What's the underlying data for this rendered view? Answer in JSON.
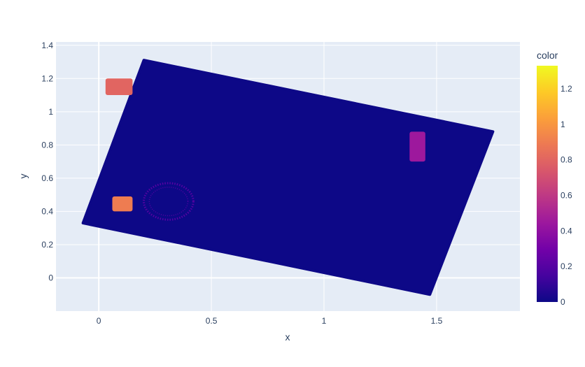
{
  "chart_data": {
    "type": "scatter",
    "title": "",
    "xlabel": "x",
    "ylabel": "y",
    "xlim": [
      -0.19,
      1.87
    ],
    "ylim": [
      -0.2,
      1.42
    ],
    "x_ticks": [
      0,
      0.5,
      1,
      1.5
    ],
    "x_tick_labels": [
      "0",
      "0.5",
      "1",
      "1.5"
    ],
    "y_ticks": [
      0,
      0.2,
      0.4,
      0.6,
      0.8,
      1,
      1.2,
      1.4
    ],
    "y_tick_labels": [
      "0",
      "0.2",
      "0.4",
      "0.6",
      "0.8",
      "1",
      "1.2",
      "1.4"
    ],
    "grid": true,
    "plot_background": "#e5ecf6",
    "colorbar": {
      "title": "color",
      "range": [
        0,
        1.33
      ],
      "ticks": [
        0,
        0.2,
        0.4,
        0.6,
        0.8,
        1,
        1.2
      ],
      "tick_labels": [
        "0",
        "0.2",
        "0.4",
        "0.6",
        "0.8",
        "1",
        "1.2"
      ],
      "colorscale": [
        "#0d0887",
        "#46039f",
        "#7201a8",
        "#9c179e",
        "#bd3786",
        "#d8576b",
        "#ed7953",
        "#fb9f3a",
        "#fdca26",
        "#f0f921"
      ]
    },
    "regions": [
      {
        "name": "main-rectangle",
        "shape": "polygon",
        "color_value": 0.0,
        "vertices": [
          [
            0.2,
            1.31
          ],
          [
            1.75,
            0.88
          ],
          [
            1.47,
            -0.1
          ],
          [
            -0.07,
            0.33
          ]
        ]
      },
      {
        "name": "upper-left-blob",
        "shape": "rect",
        "color_value": 0.8,
        "x": [
          0.03,
          0.15
        ],
        "y": [
          1.1,
          1.2
        ]
      },
      {
        "name": "small-square",
        "shape": "rect",
        "color_value": 0.9,
        "x": [
          0.06,
          0.15
        ],
        "y": [
          0.4,
          0.49
        ]
      },
      {
        "name": "ring",
        "shape": "ring",
        "color_value": 0.2,
        "center": [
          0.31,
          0.46
        ],
        "radius_x": 0.11,
        "radius_y": 0.11
      },
      {
        "name": "right-bar",
        "shape": "rect",
        "color_value": 0.45,
        "x": [
          1.38,
          1.45
        ],
        "y": [
          0.7,
          0.88
        ]
      }
    ]
  }
}
